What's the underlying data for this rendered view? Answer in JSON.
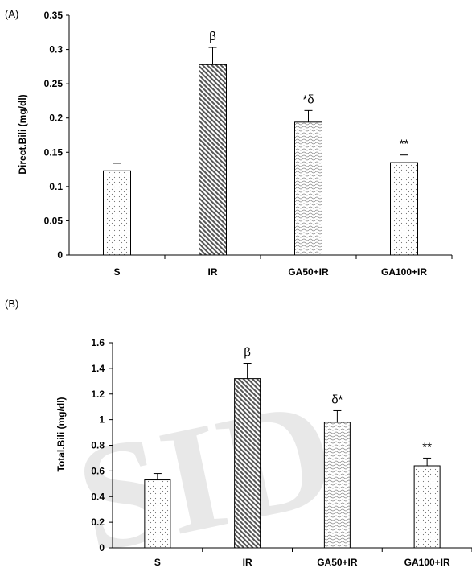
{
  "watermark": "SID",
  "chart_data": [
    {
      "type": "bar",
      "panel_label": "(A)",
      "ylabel": "Direct.Bili (mg/dl)",
      "categories": [
        "S",
        "IR",
        "GA50+IR",
        "GA100+IR"
      ],
      "values": [
        0.123,
        0.278,
        0.194,
        0.135
      ],
      "errors": [
        0.011,
        0.025,
        0.017,
        0.011
      ],
      "annotations": [
        "",
        "β",
        "*δ",
        "**"
      ],
      "patterns": [
        "dots",
        "diagonal",
        "wave",
        "dots"
      ],
      "ylim": [
        0,
        0.35
      ],
      "yticks": [
        0,
        0.05,
        0.1,
        0.15,
        0.2,
        0.25,
        0.3,
        0.35
      ],
      "ytick_labels": [
        "0",
        "0.05",
        "0.1",
        "0.15",
        "0.2",
        "0.25",
        "0.3",
        "0.35"
      ],
      "grid": false,
      "legend": "none"
    },
    {
      "type": "bar",
      "panel_label": "(B)",
      "ylabel": "Total.Bili (mg/dl)",
      "categories": [
        "S",
        "IR",
        "GA50+IR",
        "GA100+IR"
      ],
      "values": [
        0.53,
        1.32,
        0.98,
        0.64
      ],
      "errors": [
        0.05,
        0.12,
        0.09,
        0.06
      ],
      "annotations": [
        "",
        "β",
        "δ*",
        "**"
      ],
      "patterns": [
        "dots",
        "diagonal",
        "wave",
        "dots"
      ],
      "ylim": [
        0,
        1.6
      ],
      "yticks": [
        0,
        0.2,
        0.4,
        0.6,
        0.8,
        1.0,
        1.2,
        1.4,
        1.6
      ],
      "ytick_labels": [
        "0",
        "0.2",
        "0.4",
        "0.6",
        "0.8",
        "1",
        "1.2",
        "1.4",
        "1.6"
      ],
      "grid": false,
      "legend": "none"
    }
  ]
}
